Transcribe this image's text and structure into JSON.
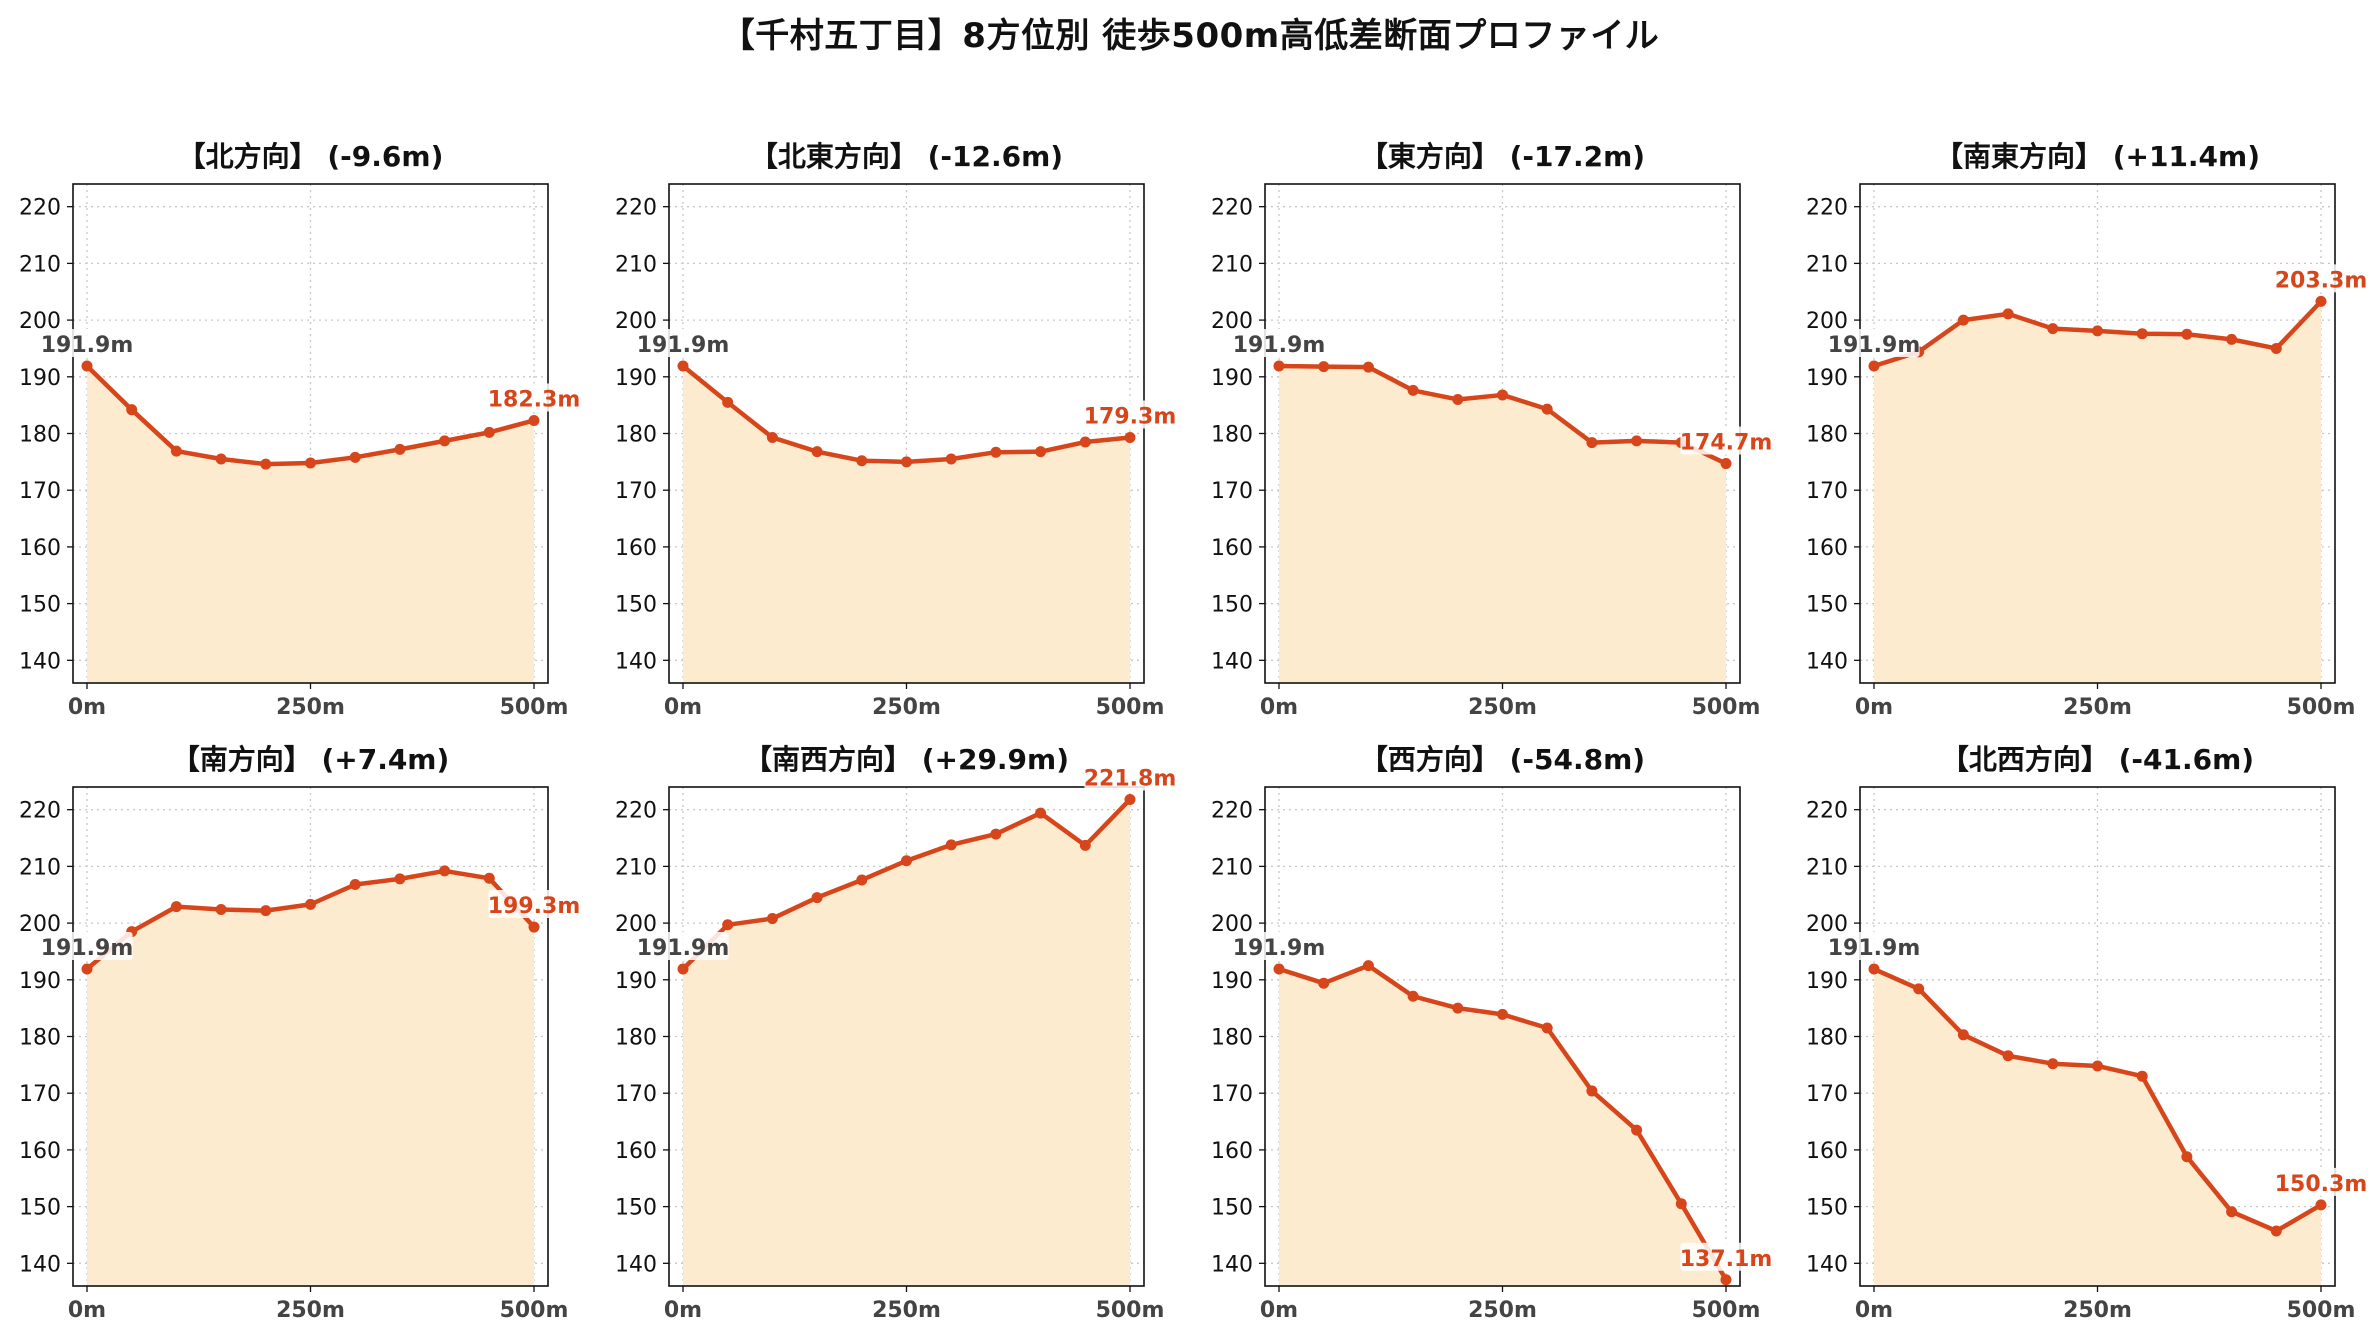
{
  "title": "【千村五丁目】8方位別 徒歩500m高低差断面プロファイル",
  "colors": {
    "line": "#d6461a",
    "fill": "#fdebd0",
    "grid": "#c8c8c8",
    "start_label": "#444444",
    "end_label": "#d6461a"
  },
  "chart_data": [
    {
      "type": "area",
      "title": "【北方向】 (-9.6m)",
      "x": [
        0,
        50,
        100,
        150,
        200,
        250,
        300,
        350,
        400,
        450,
        500
      ],
      "values": [
        191.9,
        184.2,
        176.9,
        175.5,
        174.6,
        174.8,
        175.8,
        177.2,
        178.7,
        180.2,
        182.3
      ],
      "start_label": "191.9m",
      "end_label": "182.3m",
      "xticks": [
        "0m",
        "250m",
        "500m"
      ],
      "yticks": [
        "140",
        "150",
        "160",
        "170",
        "180",
        "190",
        "200",
        "210",
        "220"
      ],
      "ylim": [
        136,
        224
      ],
      "xlim": [
        0,
        500
      ],
      "grid": true
    },
    {
      "type": "area",
      "title": "【北東方向】 (-12.6m)",
      "x": [
        0,
        50,
        100,
        150,
        200,
        250,
        300,
        350,
        400,
        450,
        500
      ],
      "values": [
        191.9,
        185.5,
        179.3,
        176.8,
        175.2,
        175.0,
        175.5,
        176.7,
        176.8,
        178.5,
        179.3
      ],
      "start_label": "191.9m",
      "end_label": "179.3m",
      "xticks": [
        "0m",
        "250m",
        "500m"
      ],
      "yticks": [
        "140",
        "150",
        "160",
        "170",
        "180",
        "190",
        "200",
        "210",
        "220"
      ],
      "ylim": [
        136,
        224
      ],
      "xlim": [
        0,
        500
      ],
      "grid": true
    },
    {
      "type": "area",
      "title": "【東方向】 (-17.2m)",
      "x": [
        0,
        50,
        100,
        150,
        200,
        250,
        300,
        350,
        400,
        450,
        500
      ],
      "values": [
        191.9,
        191.8,
        191.7,
        187.6,
        186.0,
        186.8,
        184.3,
        178.4,
        178.7,
        178.4,
        174.7
      ],
      "start_label": "191.9m",
      "end_label": "174.7m",
      "xticks": [
        "0m",
        "250m",
        "500m"
      ],
      "yticks": [
        "140",
        "150",
        "160",
        "170",
        "180",
        "190",
        "200",
        "210",
        "220"
      ],
      "ylim": [
        136,
        224
      ],
      "xlim": [
        0,
        500
      ],
      "grid": true
    },
    {
      "type": "area",
      "title": "【南東方向】 (+11.4m)",
      "x": [
        0,
        50,
        100,
        150,
        200,
        250,
        300,
        350,
        400,
        450,
        500
      ],
      "values": [
        191.9,
        194.4,
        200.0,
        201.1,
        198.5,
        198.1,
        197.6,
        197.5,
        196.6,
        195.0,
        203.3
      ],
      "start_label": "191.9m",
      "end_label": "203.3m",
      "xticks": [
        "0m",
        "250m",
        "500m"
      ],
      "yticks": [
        "140",
        "150",
        "160",
        "170",
        "180",
        "190",
        "200",
        "210",
        "220"
      ],
      "ylim": [
        136,
        224
      ],
      "xlim": [
        0,
        500
      ],
      "grid": true
    },
    {
      "type": "area",
      "title": "【南方向】 (+7.4m)",
      "x": [
        0,
        50,
        100,
        150,
        200,
        250,
        300,
        350,
        400,
        450,
        500
      ],
      "values": [
        191.9,
        198.5,
        202.9,
        202.4,
        202.2,
        203.3,
        206.8,
        207.8,
        209.2,
        207.9,
        199.3
      ],
      "start_label": "191.9m",
      "end_label": "199.3m",
      "xticks": [
        "0m",
        "250m",
        "500m"
      ],
      "yticks": [
        "140",
        "150",
        "160",
        "170",
        "180",
        "190",
        "200",
        "210",
        "220"
      ],
      "ylim": [
        136,
        224
      ],
      "xlim": [
        0,
        500
      ],
      "grid": true
    },
    {
      "type": "area",
      "title": "【南西方向】 (+29.9m)",
      "x": [
        0,
        50,
        100,
        150,
        200,
        250,
        300,
        350,
        400,
        450,
        500
      ],
      "values": [
        191.9,
        199.7,
        200.8,
        204.5,
        207.6,
        211.0,
        213.8,
        215.7,
        219.4,
        213.7,
        221.8
      ],
      "start_label": "191.9m",
      "end_label": "221.8m",
      "xticks": [
        "0m",
        "250m",
        "500m"
      ],
      "yticks": [
        "140",
        "150",
        "160",
        "170",
        "180",
        "190",
        "200",
        "210",
        "220"
      ],
      "ylim": [
        136,
        224
      ],
      "xlim": [
        0,
        500
      ],
      "grid": true
    },
    {
      "type": "area",
      "title": "【西方向】 (-54.8m)",
      "x": [
        0,
        50,
        100,
        150,
        200,
        250,
        300,
        350,
        400,
        450,
        500
      ],
      "values": [
        191.9,
        189.4,
        192.5,
        187.1,
        185.0,
        183.9,
        181.5,
        170.4,
        163.5,
        150.5,
        137.1
      ],
      "start_label": "191.9m",
      "end_label": "137.1m",
      "xticks": [
        "0m",
        "250m",
        "500m"
      ],
      "yticks": [
        "140",
        "150",
        "160",
        "170",
        "180",
        "190",
        "200",
        "210",
        "220"
      ],
      "ylim": [
        136,
        224
      ],
      "xlim": [
        0,
        500
      ],
      "grid": true
    },
    {
      "type": "area",
      "title": "【北西方向】 (-41.6m)",
      "x": [
        0,
        50,
        100,
        150,
        200,
        250,
        300,
        350,
        400,
        450,
        500
      ],
      "values": [
        191.9,
        188.4,
        180.3,
        176.6,
        175.2,
        174.8,
        173.0,
        158.8,
        149.1,
        145.7,
        150.3
      ],
      "start_label": "191.9m",
      "end_label": "150.3m",
      "xticks": [
        "0m",
        "250m",
        "500m"
      ],
      "yticks": [
        "140",
        "150",
        "160",
        "170",
        "180",
        "190",
        "200",
        "210",
        "220"
      ],
      "ylim": [
        136,
        224
      ],
      "xlim": [
        0,
        500
      ],
      "grid": true
    }
  ]
}
